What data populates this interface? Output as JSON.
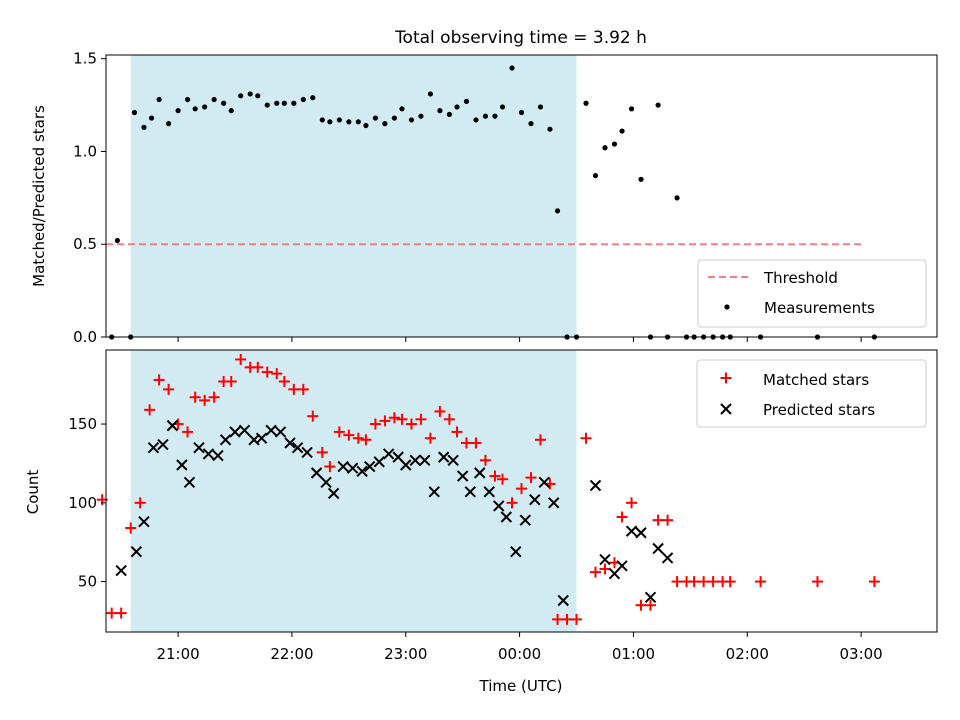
{
  "figure_title": "Total observing time = 3.92 h",
  "colors": {
    "shade": "#add8e6",
    "threshold": "#f08080",
    "matched": "#ff0000",
    "predicted": "#000000",
    "measurement": "#000000"
  },
  "chart_data": [
    {
      "type": "scatter",
      "id": "ratio",
      "ylabel": "Matched/Predicted stars",
      "xlim": [
        "20:22",
        "03:40"
      ],
      "ylim": [
        0,
        1.52
      ],
      "yticks": [
        0,
        0.5,
        1.0,
        1.5
      ],
      "ytick_labels": [
        "0.0",
        "0.5",
        "1.0",
        "1.5"
      ],
      "shaded_span": [
        "20:35",
        "00:30"
      ],
      "legend": {
        "placement": "lower-right",
        "entries": [
          "Threshold",
          "Measurements"
        ]
      },
      "threshold": {
        "name": "Threshold",
        "x": [
          "20:22",
          "03:00"
        ],
        "y": 0.5
      },
      "series": [
        {
          "name": "Measurements",
          "points": [
            [
              "20:25",
              0.0
            ],
            [
              "20:28",
              0.52
            ],
            [
              "20:35",
              0.0
            ],
            [
              "20:37",
              1.21
            ],
            [
              "20:42",
              1.13
            ],
            [
              "20:46",
              1.18
            ],
            [
              "20:50",
              1.28
            ],
            [
              "20:55",
              1.15
            ],
            [
              "21:00",
              1.22
            ],
            [
              "21:05",
              1.28
            ],
            [
              "21:09",
              1.23
            ],
            [
              "21:14",
              1.24
            ],
            [
              "21:19",
              1.28
            ],
            [
              "21:24",
              1.26
            ],
            [
              "21:28",
              1.22
            ],
            [
              "21:33",
              1.3
            ],
            [
              "21:38",
              1.31
            ],
            [
              "21:42",
              1.3
            ],
            [
              "21:47",
              1.25
            ],
            [
              "21:52",
              1.26
            ],
            [
              "21:56",
              1.26
            ],
            [
              "22:01",
              1.26
            ],
            [
              "22:06",
              1.28
            ],
            [
              "22:11",
              1.29
            ],
            [
              "22:16",
              1.17
            ],
            [
              "22:20",
              1.16
            ],
            [
              "22:25",
              1.17
            ],
            [
              "22:30",
              1.16
            ],
            [
              "22:35",
              1.16
            ],
            [
              "22:39",
              1.14
            ],
            [
              "22:44",
              1.18
            ],
            [
              "22:49",
              1.15
            ],
            [
              "22:54",
              1.18
            ],
            [
              "22:58",
              1.23
            ],
            [
              "23:03",
              1.17
            ],
            [
              "23:08",
              1.19
            ],
            [
              "23:13",
              1.31
            ],
            [
              "23:18",
              1.22
            ],
            [
              "23:23",
              1.2
            ],
            [
              "23:27",
              1.24
            ],
            [
              "23:32",
              1.27
            ],
            [
              "23:37",
              1.17
            ],
            [
              "23:42",
              1.19
            ],
            [
              "23:47",
              1.19
            ],
            [
              "23:51",
              1.24
            ],
            [
              "23:56",
              1.45
            ],
            [
              "00:01",
              1.21
            ],
            [
              "00:06",
              1.15
            ],
            [
              "00:11",
              1.24
            ],
            [
              "00:16",
              1.12
            ],
            [
              "00:20",
              0.68
            ],
            [
              "00:25",
              0.0
            ],
            [
              "00:30",
              0.0
            ],
            [
              "00:35",
              1.26
            ],
            [
              "00:40",
              0.87
            ],
            [
              "00:45",
              1.02
            ],
            [
              "00:50",
              1.04
            ],
            [
              "00:54",
              1.11
            ],
            [
              "00:59",
              1.23
            ],
            [
              "01:04",
              0.85
            ],
            [
              "01:09",
              0.0
            ],
            [
              "01:13",
              1.25
            ],
            [
              "01:18",
              0.0
            ],
            [
              "01:23",
              0.75
            ],
            [
              "01:28",
              0.0
            ],
            [
              "01:32",
              0.0
            ],
            [
              "01:37",
              0.0
            ],
            [
              "01:42",
              0.0
            ],
            [
              "01:47",
              0.0
            ],
            [
              "01:51",
              0.0
            ],
            [
              "02:07",
              0.0
            ],
            [
              "02:37",
              0.0
            ],
            [
              "03:07",
              0.0
            ]
          ]
        }
      ]
    },
    {
      "type": "scatter",
      "id": "counts",
      "xlabel": "Time (UTC)",
      "ylabel": "Count",
      "xlim": [
        "20:22",
        "03:40"
      ],
      "ylim": [
        18,
        197
      ],
      "yticks": [
        50,
        100,
        150
      ],
      "ytick_labels": [
        "50",
        "100",
        "150"
      ],
      "xticks": [
        "21:00",
        "22:00",
        "23:00",
        "00:00",
        "01:00",
        "02:00",
        "03:00"
      ],
      "xtick_labels": [
        "21:00",
        "22:00",
        "23:00",
        "00:00",
        "01:00",
        "02:00",
        "03:00"
      ],
      "shaded_span": [
        "20:35",
        "00:30"
      ],
      "legend": {
        "placement": "upper-right",
        "entries": [
          "Matched stars",
          "Predicted stars"
        ]
      },
      "series": [
        {
          "name": "Matched stars",
          "marker": "+",
          "points": [
            [
              "20:20",
              102
            ],
            [
              "20:25",
              30
            ],
            [
              "20:30",
              30
            ],
            [
              "20:35",
              84
            ],
            [
              "20:40",
              100
            ],
            [
              "20:45",
              159
            ],
            [
              "20:50",
              178
            ],
            [
              "20:55",
              172
            ],
            [
              "21:00",
              150
            ],
            [
              "21:05",
              145
            ],
            [
              "21:09",
              167
            ],
            [
              "21:14",
              165
            ],
            [
              "21:19",
              167
            ],
            [
              "21:24",
              177
            ],
            [
              "21:28",
              177
            ],
            [
              "21:33",
              191
            ],
            [
              "21:38",
              186
            ],
            [
              "21:42",
              186
            ],
            [
              "21:47",
              183
            ],
            [
              "21:52",
              182
            ],
            [
              "21:56",
              177
            ],
            [
              "22:01",
              172
            ],
            [
              "22:06",
              172
            ],
            [
              "22:11",
              155
            ],
            [
              "22:16",
              132
            ],
            [
              "22:20",
              123
            ],
            [
              "22:25",
              145
            ],
            [
              "22:30",
              143
            ],
            [
              "22:35",
              141
            ],
            [
              "22:39",
              140
            ],
            [
              "22:44",
              150
            ],
            [
              "22:49",
              152
            ],
            [
              "22:54",
              154
            ],
            [
              "22:58",
              153
            ],
            [
              "23:03",
              150
            ],
            [
              "23:08",
              153
            ],
            [
              "23:13",
              141
            ],
            [
              "23:18",
              158
            ],
            [
              "23:23",
              153
            ],
            [
              "23:27",
              145
            ],
            [
              "23:32",
              138
            ],
            [
              "23:37",
              138
            ],
            [
              "23:42",
              127
            ],
            [
              "23:47",
              117
            ],
            [
              "23:51",
              115
            ],
            [
              "23:56",
              100
            ],
            [
              "00:01",
              109
            ],
            [
              "00:06",
              116
            ],
            [
              "00:11",
              140
            ],
            [
              "00:16",
              112
            ],
            [
              "00:20",
              26
            ],
            [
              "00:25",
              26
            ],
            [
              "00:30",
              26
            ],
            [
              "00:35",
              141
            ],
            [
              "00:40",
              56
            ],
            [
              "00:45",
              58
            ],
            [
              "00:50",
              62
            ],
            [
              "00:54",
              91
            ],
            [
              "00:59",
              100
            ],
            [
              "01:04",
              35
            ],
            [
              "01:09",
              35
            ],
            [
              "01:13",
              89
            ],
            [
              "01:18",
              89
            ],
            [
              "01:23",
              50
            ],
            [
              "01:28",
              50
            ],
            [
              "01:32",
              50
            ],
            [
              "01:37",
              50
            ],
            [
              "01:42",
              50
            ],
            [
              "01:47",
              50
            ],
            [
              "01:51",
              50
            ],
            [
              "02:07",
              50
            ],
            [
              "02:37",
              50
            ],
            [
              "03:07",
              50
            ]
          ]
        },
        {
          "name": "Predicted stars",
          "marker": "x",
          "points": [
            [
              "20:30",
              57
            ],
            [
              "20:38",
              69
            ],
            [
              "20:42",
              88
            ],
            [
              "20:47",
              135
            ],
            [
              "20:52",
              137
            ],
            [
              "20:57",
              149
            ],
            [
              "21:02",
              124
            ],
            [
              "21:06",
              113
            ],
            [
              "21:11",
              135
            ],
            [
              "21:16",
              131
            ],
            [
              "21:21",
              130
            ],
            [
              "21:25",
              140
            ],
            [
              "21:30",
              145
            ],
            [
              "21:35",
              146
            ],
            [
              "21:40",
              140
            ],
            [
              "21:44",
              141
            ],
            [
              "21:49",
              146
            ],
            [
              "21:54",
              145
            ],
            [
              "21:59",
              138
            ],
            [
              "22:03",
              135
            ],
            [
              "22:08",
              132
            ],
            [
              "22:13",
              119
            ],
            [
              "22:18",
              113
            ],
            [
              "22:22",
              106
            ],
            [
              "22:27",
              123
            ],
            [
              "22:32",
              122
            ],
            [
              "22:37",
              120
            ],
            [
              "22:41",
              123
            ],
            [
              "22:46",
              126
            ],
            [
              "22:51",
              131
            ],
            [
              "22:56",
              129
            ],
            [
              "23:00",
              124
            ],
            [
              "23:05",
              127
            ],
            [
              "23:10",
              127
            ],
            [
              "23:15",
              107
            ],
            [
              "23:20",
              129
            ],
            [
              "23:25",
              127
            ],
            [
              "23:30",
              117
            ],
            [
              "23:34",
              107
            ],
            [
              "23:39",
              119
            ],
            [
              "23:44",
              107
            ],
            [
              "23:49",
              98
            ],
            [
              "23:53",
              91
            ],
            [
              "23:58",
              69
            ],
            [
              "00:03",
              89
            ],
            [
              "00:08",
              102
            ],
            [
              "00:13",
              113
            ],
            [
              "00:18",
              100
            ],
            [
              "00:23",
              38
            ],
            [
              "00:40",
              111
            ],
            [
              "00:45",
              64
            ],
            [
              "00:50",
              55
            ],
            [
              "00:54",
              60
            ],
            [
              "00:59",
              82
            ],
            [
              "01:04",
              81
            ],
            [
              "01:09",
              40
            ],
            [
              "01:13",
              71
            ],
            [
              "01:18",
              65
            ]
          ]
        }
      ]
    }
  ]
}
